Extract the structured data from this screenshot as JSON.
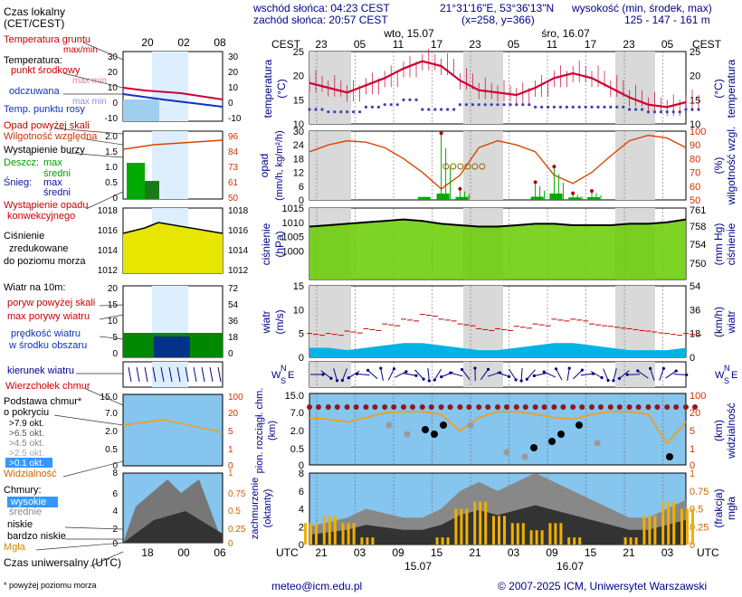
{
  "header": {
    "sunrise": "wschód słońca: 04:23 CEST",
    "sunset": "zachód słońca: 20:57 CEST",
    "coords": "21°31'16\"E, 53°36'13\"N",
    "grid": "(x=258, y=366)",
    "elevation_label": "wysokość (min, środek, max)",
    "elevation_values": "125 - 147 - 161 m"
  },
  "legend": {
    "time_local": "Czas lokalny",
    "time_local_sub": "(CET/CEST)",
    "ground_temp": "Temperatura gruntu",
    "temp_max_min": "max/min",
    "temp_heading": "Temperatura:",
    "temp_mid": "punkt środkowy",
    "temp_mid_range": "max min",
    "felt": "odczuwana",
    "felt_range": "max min",
    "dew": "Temp. punktu rosy",
    "precip_above": "Opad powyżej skali",
    "humidity": "Wilgotność względna",
    "storm": "Wystąpienie burzy",
    "rain": "Deszcz:",
    "snow": "Śnieg:",
    "max": "max",
    "mean": "średni",
    "conv": "Wystąpienie opadu",
    "conv2": "konwekcyjnego",
    "pressure1": "Ciśnienie",
    "pressure2": "zredukowane",
    "pressure3": "do poziomu morza",
    "wind_title": "Wiatr na 10m:",
    "gust_above": "poryw powyżej skali",
    "gust_max": "max porywy wiatru",
    "wind_speed1": "prędkość wiatru",
    "wind_speed2": "w środku obszaru",
    "wind_dir": "kierunek wiatru",
    "cloud_top": "Wierzchołek chmur",
    "cloud_base1": "Podstawa chmur*",
    "cloud_base2": "o pokryciu",
    "okt": [
      ">7.9 okt.",
      ">6.5 okt.",
      ">4.5 okt.",
      ">2.5 okt.",
      ">0.1 okt."
    ],
    "visibility": "Widzialność",
    "clouds": "Chmury:",
    "cl_high": "wysokie",
    "cl_mid": "średnie",
    "cl_low": "niskie",
    "cl_vlow": "bardzo niskie",
    "fog": "Mgła",
    "utc": "Czas uniwersalny (UTC)",
    "footnote": "* powyżej poziomu morza"
  },
  "legend_axis": {
    "top_hours": [
      "20",
      "02",
      "08"
    ],
    "bottom_hours": [
      "18",
      "00",
      "06"
    ],
    "temp_left": [
      "30",
      "20",
      "10",
      "0",
      "-10"
    ],
    "temp_right": [
      "30",
      "20",
      "10",
      "0",
      "-10"
    ],
    "precip_left": [
      "2.0",
      "1.5",
      "1.0",
      "0.5",
      "0"
    ],
    "precip_right": [
      "96",
      "84",
      "73",
      "61",
      "50"
    ],
    "press": [
      "1018",
      "1016",
      "1014",
      "1012"
    ],
    "wind_left": [
      "20",
      "15",
      "10",
      "5",
      "0"
    ],
    "wind_right": [
      "72",
      "54",
      "36",
      "18",
      "0"
    ],
    "cbase_left": [
      "15.0",
      "7.0",
      "2.0",
      "0.5",
      "0"
    ],
    "cbase_right": [
      "100",
      "20",
      "5",
      "1",
      "0"
    ],
    "cloud_left": [
      "8",
      "6",
      "4",
      "2",
      "0"
    ],
    "cloud_right": [
      "1",
      "0.75",
      "0.5",
      "0.25",
      "0"
    ]
  },
  "main_axes": {
    "cest": "CEST",
    "utc": "UTC",
    "top_hours": [
      "23",
      "05",
      "11",
      "17",
      "23",
      "05",
      "11",
      "17",
      "23",
      "05"
    ],
    "bottom_hours": [
      "21",
      "03",
      "09",
      "15",
      "21",
      "03",
      "09",
      "15",
      "21",
      "03"
    ],
    "day_top": [
      "wto, 15.07",
      "śro, 16.07"
    ],
    "day_bottom": [
      "15.07",
      "16.07"
    ],
    "temp_title": "temperatura",
    "temp_unit": "(°C)",
    "precip_title": "opad",
    "precip_unit": "(mm/h, kg/m²/h)",
    "humid_title": "wilgotność wzgl.",
    "humid_unit": "(%)",
    "press_title": "ciśnienie",
    "press_unit": "(hPa)",
    "press_unit_r": "(mm Hg)",
    "wind_title": "wiatr",
    "wind_unit": "(m/s)",
    "wind_unit_r": "(km/h)",
    "cb_title": "pion. rozciągł. chm.",
    "cb_unit": "(km)",
    "vis_title": "widzialność",
    "vis_unit": "(km)",
    "cl_title": "zachmurzenie",
    "cl_unit": "(oktanty)",
    "fog_title": "mgła",
    "fog_unit": "(frakcja)",
    "dir_letters": "NWES"
  },
  "footer": {
    "email": "meteo@icm.edu.pl",
    "copyright": "© 2007-2025 ICM, Uniwersytet Warszawski"
  },
  "colors": {
    "temp": "#cc0033",
    "felt": "#e89bb0",
    "dew": "#4040b0",
    "humidity": "#dd4400",
    "precip_rain": "#00aa00",
    "precip_max": "#b30000",
    "press_line": "#000000",
    "press_fill": "#66cc00",
    "wind_fill": "#00b3e6",
    "gust": "#cc0000",
    "dir": "#000080",
    "cloud_bg": "#85c5ee",
    "visibility": "#ff9900",
    "night": "#d9d9d9"
  },
  "chart_data": [
    {
      "type": "line",
      "title": "temperatura",
      "unit": "°C",
      "x_start": "2025-07-14 21:00 UTC",
      "x_step_hours": 3,
      "series": [
        {
          "name": "temperatura",
          "values": [
            18.5,
            17.5,
            16.5,
            18,
            19.5,
            21.5,
            23,
            22,
            19,
            17,
            16.5,
            16,
            17.5,
            19.5,
            20.5,
            19.5,
            17.5,
            15.5,
            14,
            13.5,
            14.5
          ]
        },
        {
          "name": "punkt rosy",
          "values": [
            13,
            12.5,
            12.5,
            13.5,
            14,
            15,
            13,
            13,
            14,
            14,
            14,
            14,
            13.5,
            13.5,
            13.5,
            13.5,
            13.5,
            13,
            12.5,
            12.5,
            13
          ]
        }
      ],
      "ylim": [
        10,
        25
      ]
    },
    {
      "type": "bar",
      "title": "opad",
      "unit": "mm/h",
      "ylim": [
        0,
        30
      ],
      "humidity_pct": [
        85,
        90,
        93,
        92,
        88,
        80,
        70,
        58,
        68,
        88,
        93,
        90,
        85,
        68,
        62,
        70,
        82,
        93,
        97,
        95,
        88
      ],
      "precip_max": [
        0,
        0,
        0,
        0,
        0,
        0,
        0,
        30,
        5,
        0,
        0,
        0,
        8,
        15,
        3,
        4,
        0,
        0,
        0,
        0,
        0
      ],
      "precip_mean": [
        0,
        0,
        0,
        0,
        0,
        0,
        0.5,
        2,
        0.5,
        0,
        0,
        0,
        0.6,
        2,
        0.3,
        0.4,
        0,
        0,
        0,
        0,
        0
      ]
    },
    {
      "type": "area",
      "title": "ciśnienie",
      "unit": "hPa",
      "ylim": [
        990,
        1015
      ],
      "values": [
        1008.5,
        1009,
        1009.5,
        1010,
        1010.5,
        1011,
        1010.5,
        1009.5,
        1009,
        1008.5,
        1008.5,
        1009,
        1009.5,
        1009.5,
        1009,
        1009,
        1009,
        1009.5,
        1009.5,
        1010,
        1011
      ]
    },
    {
      "type": "area",
      "title": "wiatr",
      "unit": "m/s",
      "ylim": [
        0,
        15
      ],
      "speed": [
        2,
        2,
        1.5,
        2,
        2.5,
        3,
        3,
        2.5,
        2,
        1.5,
        1.5,
        2,
        2.5,
        3,
        3,
        2.5,
        2,
        1.5,
        1.5,
        1.5,
        2
      ],
      "gust": [
        5,
        5,
        5.5,
        6,
        7,
        8,
        9,
        8,
        7,
        6,
        6,
        6.5,
        7,
        8,
        8,
        7,
        6.5,
        6,
        5.5,
        5,
        5
      ]
    },
    {
      "type": "line",
      "title": "widzialność",
      "unit": "km",
      "ylim": [
        0,
        100
      ],
      "values": [
        20,
        18,
        15,
        20,
        28,
        30,
        30,
        25,
        8,
        20,
        30,
        30,
        25,
        20,
        18,
        25,
        30,
        30,
        25,
        3,
        15
      ]
    },
    {
      "type": "area",
      "title": "zachmurzenie",
      "unit": "oktanty",
      "ylim": [
        0,
        8
      ],
      "total": [
        2,
        2.5,
        3,
        4,
        3.5,
        3,
        3,
        4,
        6,
        7,
        6,
        7,
        8,
        7,
        6,
        5,
        4,
        3,
        3,
        4,
        5
      ],
      "fog": [
        0.3,
        0.4,
        0.3,
        0.1,
        0,
        0,
        0,
        0.1,
        0.5,
        0.6,
        0.4,
        0.3,
        0.2,
        0.3,
        0.1,
        0,
        0,
        0.1,
        0.4,
        0.6,
        0.5
      ]
    }
  ]
}
